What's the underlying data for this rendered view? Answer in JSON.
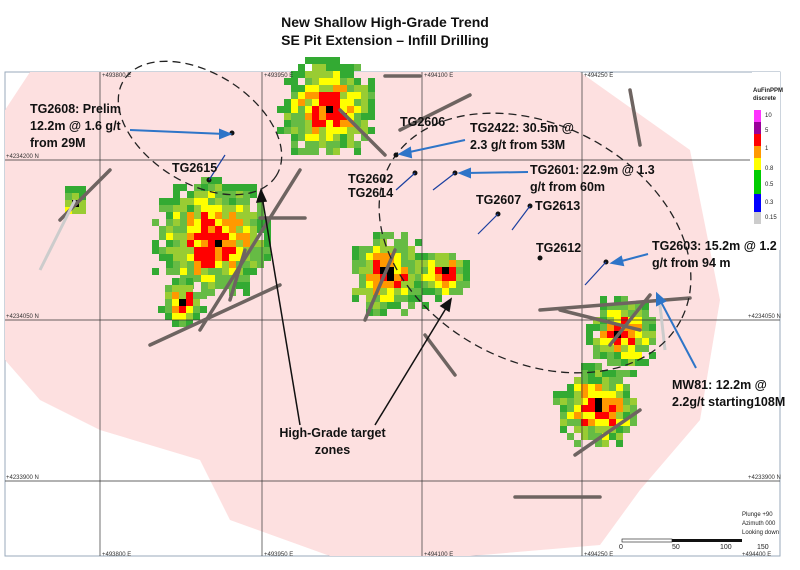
{
  "title": [
    "New Shallow High-Grade Trend",
    "SE Pit Extension – Infill Drilling"
  ],
  "grid": {
    "eastings_top": [
      "+493800 E",
      "+493950 E",
      "+494100 E",
      "+494250 E"
    ],
    "eastings_bottom": [
      "+493800 E",
      "+493950 E",
      "+494100 E",
      "+494250 E",
      "+494400 E"
    ],
    "northings": [
      "+4234200 N",
      "+4234050 N",
      "+4233900 N"
    ]
  },
  "legend": {
    "title": [
      "AuFinPPM",
      "discrete"
    ],
    "labels": [
      "10",
      "5",
      "1",
      "0.8",
      "0.5",
      "0.3",
      "0.15"
    ]
  },
  "annotations": [
    {
      "lines": [
        "TG2608: Prelim",
        "12.2m @ 1.6 g/t",
        "from 29M"
      ]
    },
    {
      "lines": [
        "TG2615"
      ]
    },
    {
      "lines": [
        "TG2606"
      ]
    },
    {
      "lines": [
        "TG2422: 30.5m @",
        "2.3 g/t from 53M"
      ]
    },
    {
      "lines": [
        "TG2601: 22.9m @ 1.3",
        "g/t from 60m"
      ]
    },
    {
      "lines": [
        "TG2602",
        "TG2614"
      ]
    },
    {
      "lines": [
        "TG2607"
      ]
    },
    {
      "lines": [
        "TG2613"
      ]
    },
    {
      "lines": [
        "TG2612"
      ]
    },
    {
      "lines": [
        "TG2603: 15.2m @ 1.2",
        "g/t from 94 m"
      ]
    },
    {
      "lines": [
        "MW81: 12.2m @",
        "2.2g/t starting108M"
      ]
    },
    {
      "lines": [
        "High-Grade target",
        "zones"
      ]
    }
  ],
  "scale_bar": [
    "0",
    "50",
    "100",
    "150"
  ],
  "view": [
    "Plunge +90",
    "Azimuth 000",
    "Looking down"
  ]
}
